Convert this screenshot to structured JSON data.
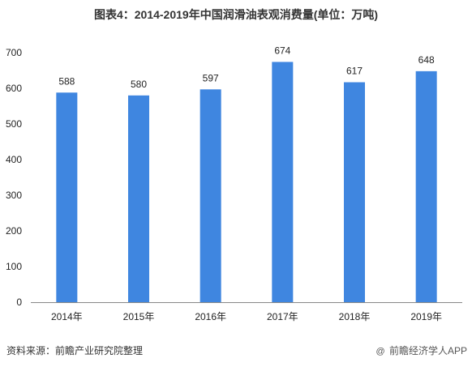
{
  "title": "图表4：2014-2019年中国润滑油表观消费量(单位：万吨)",
  "source": "资料来源：前瞻产业研究院整理",
  "credit": {
    "mark": "@",
    "text": "前瞻经济学人APP"
  },
  "colors": {
    "bar": "#3f86e0",
    "axis": "#888888",
    "text": "#222222"
  },
  "chart_data": {
    "type": "bar",
    "title": "图表4：2014-2019年中国润滑油表观消费量(单位：万吨)",
    "categories": [
      "2014年",
      "2015年",
      "2016年",
      "2017年",
      "2018年",
      "2019年"
    ],
    "values": [
      588,
      580,
      597,
      674,
      617,
      648
    ],
    "data_labels": [
      "588",
      "580",
      "597",
      "674",
      "617",
      "648"
    ],
    "ylim": [
      0,
      700
    ],
    "yticks": [
      0,
      100,
      200,
      300,
      400,
      500,
      600,
      700
    ],
    "ytick_labels": [
      "0",
      "100",
      "200",
      "300",
      "400",
      "500",
      "600",
      "700"
    ],
    "xlabel": "",
    "ylabel": "",
    "grid": false,
    "legend": "none"
  }
}
